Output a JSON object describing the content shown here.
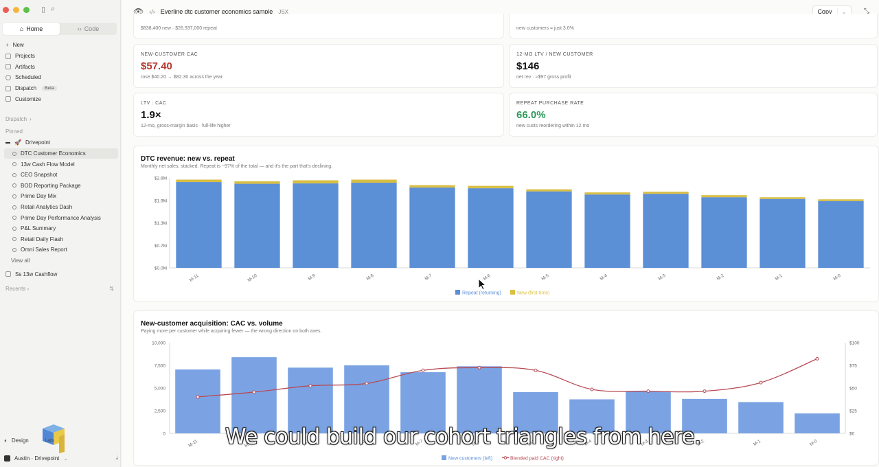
{
  "sidebar": {
    "tabs": [
      {
        "label": "Home"
      },
      {
        "label": "Code"
      }
    ],
    "nav": [
      {
        "label": "New",
        "icon": "plus-icon"
      },
      {
        "label": "Projects",
        "icon": "folder-icon"
      },
      {
        "label": "Artifacts",
        "icon": "artifact-icon"
      },
      {
        "label": "Scheduled",
        "icon": "clock-icon"
      },
      {
        "label": "Dispatch",
        "icon": "dispatch-icon",
        "badge": "Beta"
      },
      {
        "label": "Customize",
        "icon": "customize-icon"
      }
    ],
    "dispatch_label": "Dispatch",
    "pinned_label": "Pinned",
    "pinned_project": "Drivepoint",
    "pinned_items": [
      "DTC Customer Economics",
      "13w Cash Flow Model",
      "CEO Snapshot",
      "BOD Reporting Package",
      "Prime Day Mix",
      "Retail Analytics Dash",
      "Prime Day Performance Analysis",
      "P&L Summary",
      "Retail Daily Flash",
      "Omni Sales Report"
    ],
    "view_all": "View all",
    "extra_item": "Ss 13w Cashflow",
    "recents_label": "Recents",
    "design_label": "Design",
    "labs_label": "Labs",
    "user_label": "Austin · Drivepoint"
  },
  "header": {
    "title": "Everline dtc customer economics sample",
    "file_type": "JSX",
    "copy_label": "Copy"
  },
  "kpis": {
    "top_left_sub": "$838,400 new · $26,937,000 repeat",
    "top_right_sub": "new customers = just 3.0%",
    "cac": {
      "label": "NEW-CUSTOMER CAC",
      "value": "$57.40",
      "sub": "rose $40.20 → $82.30 across the year",
      "color": "#b3342c"
    },
    "ltv": {
      "label": "12-MO LTV / NEW CUSTOMER",
      "value": "$146",
      "sub": "net rev · ≈$97 gross profit",
      "color": "#111111"
    },
    "ltv_cac": {
      "label": "LTV : CAC",
      "value": "1.9×",
      "sub": "12-mo, gross-margin basis · full-life higher",
      "color": "#111111"
    },
    "repeat": {
      "label": "REPEAT PURCHASE RATE",
      "value": "66.0%",
      "sub": "new custs reordering within 12 mo",
      "color": "#2e9a5a"
    }
  },
  "chart_data": [
    {
      "type": "bar",
      "title": "DTC revenue: new vs. repeat",
      "subtitle": "Monthly net sales, stacked. Repeat is ~97% of the total — and it's the part that's declining.",
      "categories": [
        "M-11",
        "M-10",
        "M-9",
        "M-8",
        "M-7",
        "M-6",
        "M-5",
        "M-4",
        "M-3",
        "M-2",
        "M-1",
        "M-0"
      ],
      "series": [
        {
          "name": "Repeat (returning)",
          "color": "#5b8fd6",
          "values": [
            2.48,
            2.43,
            2.44,
            2.46,
            2.32,
            2.3,
            2.21,
            2.12,
            2.14,
            2.04,
            1.99,
            1.93
          ]
        },
        {
          "name": "New (first-time)",
          "color": "#d9bf43",
          "values": [
            0.07,
            0.07,
            0.09,
            0.09,
            0.07,
            0.07,
            0.06,
            0.06,
            0.06,
            0.06,
            0.05,
            0.05
          ]
        }
      ],
      "yticks": [
        "$0.0M",
        "$0.7M",
        "$1.3M",
        "$1.9M",
        "$2.6M"
      ],
      "ylim": [
        0,
        2.6
      ],
      "legend": "bottom-center"
    },
    {
      "type": "bar",
      "title": "New-customer acquisition: CAC vs. volume",
      "subtitle": "Paying more per customer while acquiring fewer — the wrong direction on both axes.",
      "categories": [
        "M-11",
        "M-10",
        "M-9",
        "M-8",
        "M-7",
        "M-6",
        "M-5",
        "M-4",
        "M-3",
        "M-2",
        "M-1",
        "M-0"
      ],
      "series": [
        {
          "name": "New customers (left)",
          "color": "#7ba3e3",
          "values": [
            7050,
            8400,
            7250,
            7500,
            6750,
            7400,
            4550,
            3750,
            4650,
            3800,
            3450,
            2200
          ]
        },
        {
          "name": "Blended paid CAC (right)",
          "color": "#b84a55",
          "values": [
            40.2,
            45.5,
            52.5,
            55.0,
            69.5,
            72.5,
            69.5,
            48.5,
            46.5,
            46.5,
            56.0,
            82.3
          ]
        }
      ],
      "yticks_left": [
        "0",
        "2,500",
        "5,000",
        "7,500",
        "10,000"
      ],
      "yticks_right": [
        "$0",
        "$25",
        "$50",
        "$75",
        "$100"
      ],
      "ylim_left": [
        0,
        10000
      ],
      "ylim_right": [
        0,
        100
      ],
      "legend": "bottom-center"
    }
  ],
  "caption": "We could build our cohort triangles from here."
}
